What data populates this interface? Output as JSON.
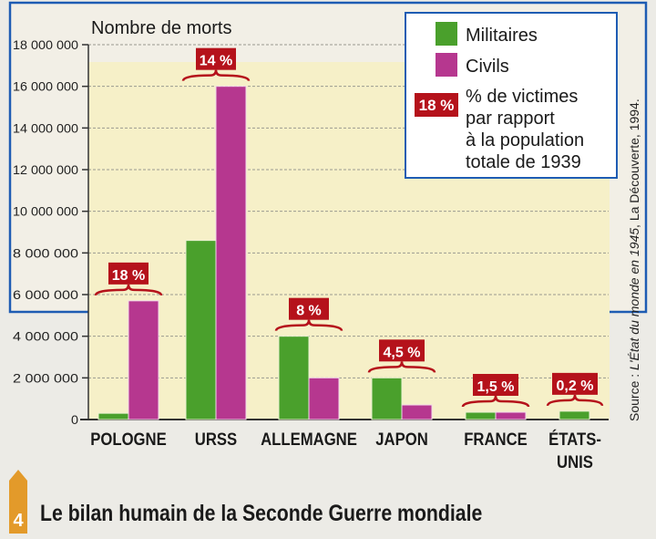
{
  "caption": {
    "number": "4",
    "title": "Le bilan humain de la Seconde Guerre mondiale"
  },
  "source": {
    "prefix": "Source : ",
    "work": "L'État du monde en 1945",
    "suffix": ", La Découverte, 1994."
  },
  "legend": {
    "militaires": "Militaires",
    "civils": "Civils",
    "pct_sample": "18 %",
    "pct_lines": [
      "% de victimes",
      "par rapport",
      "à la population",
      "totale de 1939"
    ]
  },
  "colors": {
    "militaires": "#4aa02c",
    "civils": "#b6378f",
    "badge": "#b5121b",
    "plot_bg": "#f6f0c8",
    "frame": "#1e5cb3"
  },
  "chart_data": {
    "type": "bar",
    "title": "",
    "ylabel": "Nombre de morts",
    "xlabel": "",
    "ylim": [
      0,
      18000000
    ],
    "yticks": [
      0,
      2000000,
      4000000,
      6000000,
      8000000,
      10000000,
      12000000,
      14000000,
      16000000,
      18000000
    ],
    "ytick_labels": [
      "0",
      "2 000 000",
      "4 000 000",
      "6 000 000",
      "8 000 000",
      "10 000 000",
      "12 000 000",
      "14 000 000",
      "16 000 000",
      "18 000 000"
    ],
    "categories": [
      "POLOGNE",
      "URSS",
      "ALLEMAGNE",
      "JAPON",
      "FRANCE",
      "ÉTATS-UNIS"
    ],
    "category_lines": [
      [
        "POLOGNE"
      ],
      [
        "URSS"
      ],
      [
        "ALLEMAGNE"
      ],
      [
        "JAPON"
      ],
      [
        "FRANCE"
      ],
      [
        "ÉTATS-",
        "UNIS"
      ]
    ],
    "series": [
      {
        "name": "Militaires",
        "values": [
          300000,
          8600000,
          4000000,
          2000000,
          350000,
          400000
        ]
      },
      {
        "name": "Civils",
        "values": [
          5700000,
          16000000,
          2000000,
          700000,
          350000,
          0
        ]
      }
    ],
    "percent_labels": [
      "18 %",
      "14 %",
      "8 %",
      "4,5 %",
      "1,5 %",
      "0,2 %"
    ],
    "grid": true,
    "legend_position": "top-right"
  }
}
